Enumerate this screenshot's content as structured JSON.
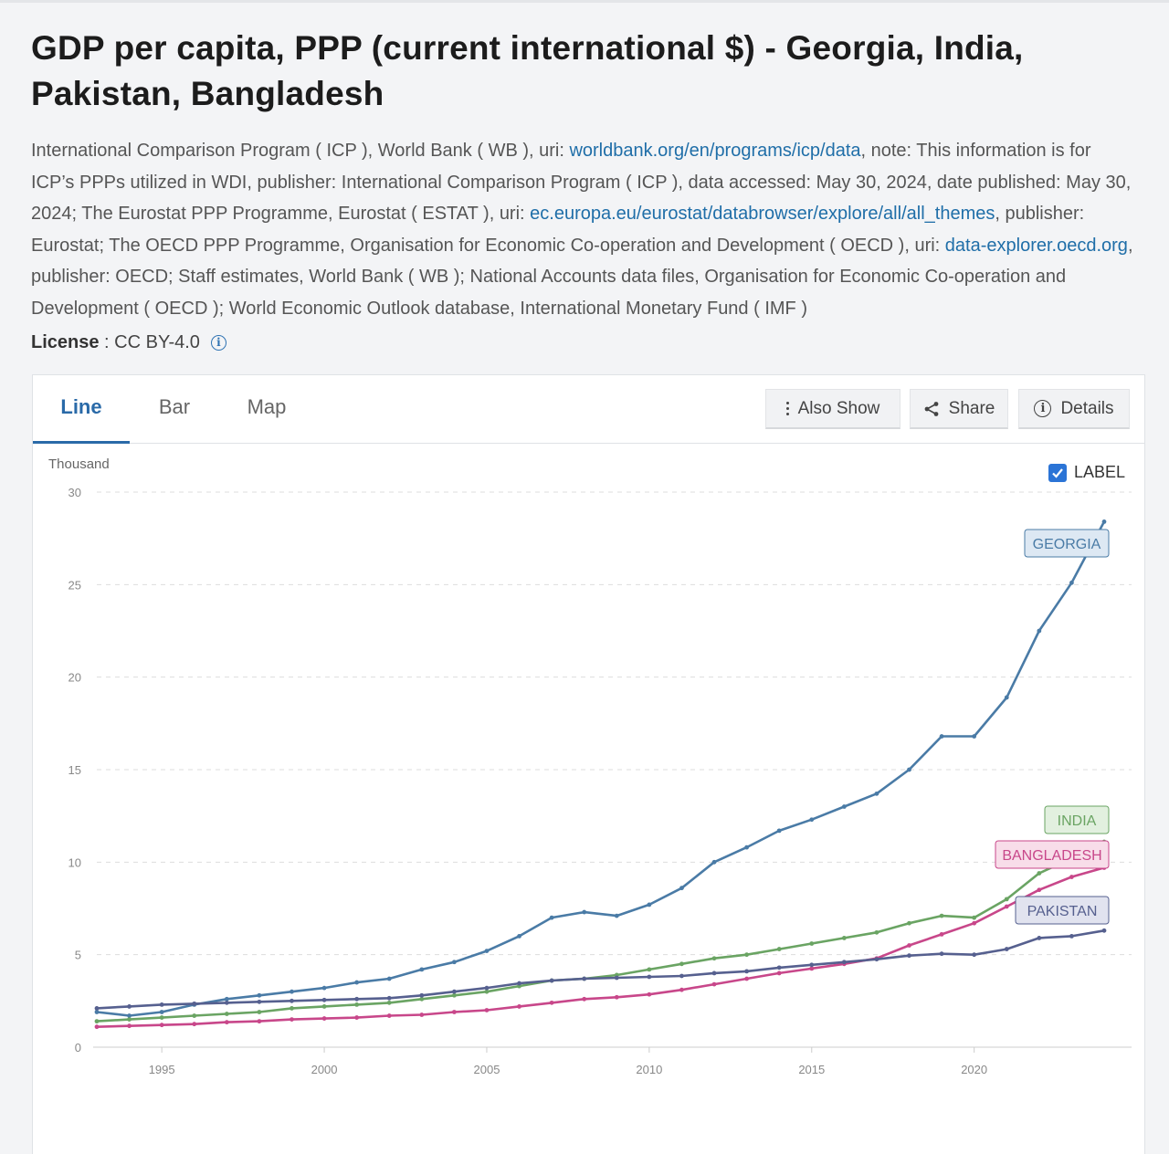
{
  "title": "GDP per capita, PPP (current international $) - Georgia, India, Pakistan, Bangladesh",
  "source": {
    "p1": "International Comparison Program ( ICP ), World Bank ( WB ), uri: ",
    "l1": "worldbank.org/en/programs/icp/data",
    "p2": ", note: This information is for ICP’s PPPs utilized in WDI, publisher: International Comparison Program ( ICP ), data accessed: May 30, 2024, date published: May 30, 2024; The Eurostat PPP Programme, Eurostat ( ESTAT ), uri: ",
    "l2": "ec.europa.eu/eurostat/databrowser/explore/all/all_themes",
    "p3": ", publisher: Eurostat; The OECD PPP Programme, Organisation for Economic Co-operation and Development ( OECD ), uri: ",
    "l3": "data-explorer.oecd.org",
    "p4": ", publisher: OECD; Staff estimates, World Bank ( WB ); National Accounts data files, Organisation for Economic Co-operation and Development ( OECD ); World Economic Outlook database, International Monetary Fund ( IMF )"
  },
  "license": {
    "label": "License",
    "sep": " : ",
    "value": "CC BY-4.0"
  },
  "tabs": {
    "line": "Line",
    "bar": "Bar",
    "map": "Map"
  },
  "buttons": {
    "also_show": "Also Show",
    "share": "Share",
    "details": "Details"
  },
  "label_toggle": "LABEL",
  "colors": {
    "georgia": "#4a7ba6",
    "india": "#6aa463",
    "bangladesh": "#c8478a",
    "pakistan": "#56608f",
    "grid": "#dddddd",
    "axis_text": "#888888"
  },
  "chart_data": {
    "type": "line",
    "unit_label": "Thousand",
    "x": [
      1993,
      1994,
      1995,
      1996,
      1997,
      1998,
      1999,
      2000,
      2001,
      2002,
      2003,
      2004,
      2005,
      2006,
      2007,
      2008,
      2009,
      2010,
      2011,
      2012,
      2013,
      2014,
      2015,
      2016,
      2017,
      2018,
      2019,
      2020,
      2021,
      2022,
      2023,
      2024
    ],
    "xticks": [
      1995,
      2000,
      2005,
      2010,
      2015,
      2020
    ],
    "yticks": [
      0,
      5,
      10,
      15,
      20,
      25,
      30
    ],
    "ylim": [
      0,
      30
    ],
    "xlim": [
      1993,
      2024
    ],
    "grid": true,
    "series": [
      {
        "name": "GEORGIA",
        "values": [
          1.9,
          1.7,
          1.9,
          2.3,
          2.6,
          2.8,
          3.0,
          3.2,
          3.5,
          3.7,
          4.2,
          4.6,
          5.2,
          6.0,
          7.0,
          7.3,
          7.1,
          7.7,
          8.6,
          10.0,
          10.8,
          11.7,
          12.3,
          13.0,
          13.7,
          15.0,
          16.8,
          16.8,
          18.9,
          22.5,
          25.1,
          28.4
        ]
      },
      {
        "name": "INDIA",
        "values": [
          1.4,
          1.5,
          1.6,
          1.7,
          1.8,
          1.9,
          2.1,
          2.2,
          2.3,
          2.4,
          2.6,
          2.8,
          3.0,
          3.3,
          3.6,
          3.7,
          3.9,
          4.2,
          4.5,
          4.8,
          5.0,
          5.3,
          5.6,
          5.9,
          6.2,
          6.7,
          7.1,
          7.0,
          8.0,
          9.4,
          10.2,
          11.1
        ]
      },
      {
        "name": "BANGLADESH",
        "values": [
          1.1,
          1.15,
          1.2,
          1.25,
          1.35,
          1.4,
          1.5,
          1.55,
          1.6,
          1.7,
          1.75,
          1.9,
          2.0,
          2.2,
          2.4,
          2.6,
          2.7,
          2.85,
          3.1,
          3.4,
          3.7,
          4.0,
          4.25,
          4.5,
          4.8,
          5.5,
          6.1,
          6.7,
          7.6,
          8.5,
          9.2,
          9.7
        ]
      },
      {
        "name": "PAKISTAN",
        "values": [
          2.1,
          2.2,
          2.3,
          2.35,
          2.4,
          2.45,
          2.5,
          2.55,
          2.6,
          2.65,
          2.8,
          3.0,
          3.2,
          3.45,
          3.6,
          3.7,
          3.75,
          3.8,
          3.85,
          4.0,
          4.1,
          4.3,
          4.45,
          4.6,
          4.75,
          4.95,
          5.05,
          5.0,
          5.3,
          5.9,
          6.0,
          6.3
        ]
      }
    ],
    "labels": [
      {
        "series": "GEORGIA",
        "text": "GEORGIA"
      },
      {
        "series": "INDIA",
        "text": "INDIA"
      },
      {
        "series": "BANGLADESH",
        "text": "BANGLADESH"
      },
      {
        "series": "PAKISTAN",
        "text": "PAKISTAN"
      }
    ]
  }
}
